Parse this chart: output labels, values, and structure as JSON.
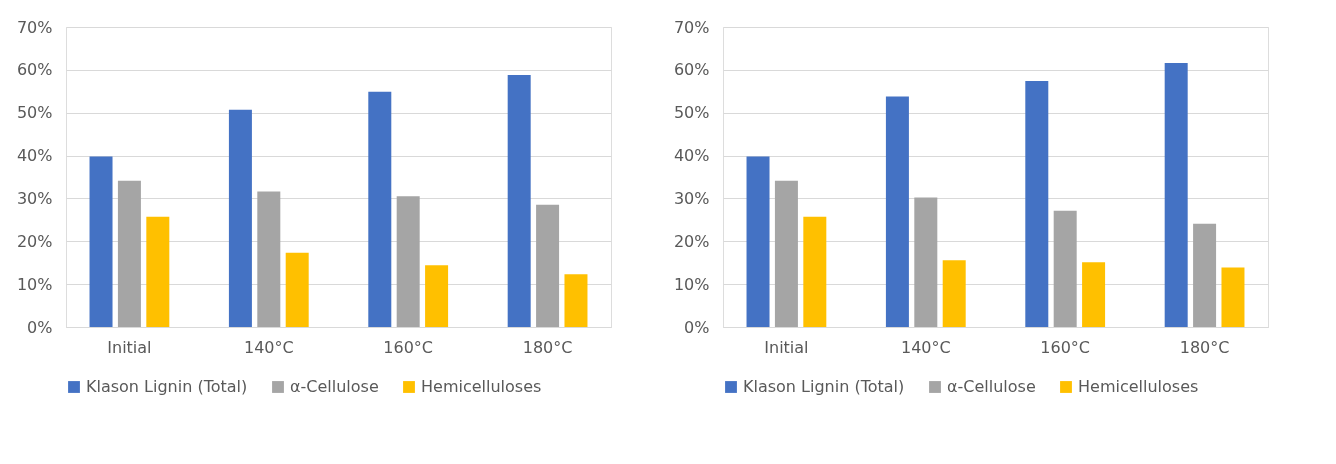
{
  "chart_data": [
    {
      "type": "bar",
      "categories": [
        "Initial",
        "140°C",
        "160°C",
        "180°C"
      ],
      "series": [
        {
          "name": "Klason Lignin (Total)",
          "color": "#4472c4",
          "values": [
            39.8,
            50.7,
            54.9,
            58.8
          ]
        },
        {
          "name": "α-Cellulose",
          "color": "#a5a5a5",
          "values": [
            34.1,
            31.6,
            30.5,
            28.5
          ]
        },
        {
          "name": "Hemicelluloses",
          "color": "#ffc000",
          "values": [
            25.7,
            17.3,
            14.4,
            12.3
          ]
        }
      ],
      "ylim": [
        0,
        70
      ],
      "yticks": [
        {
          "value": 0,
          "label": "0%"
        },
        {
          "value": 10,
          "label": "10%"
        },
        {
          "value": 20,
          "label": "20%"
        },
        {
          "value": 30,
          "label": "30%"
        },
        {
          "value": 40,
          "label": "40%"
        },
        {
          "value": 50,
          "label": "50%"
        },
        {
          "value": 60,
          "label": "60%"
        },
        {
          "value": 70,
          "label": "70%"
        }
      ],
      "grid": "y",
      "legend": "bottom"
    },
    {
      "type": "bar",
      "categories": [
        "Initial",
        "140°C",
        "160°C",
        "180°C"
      ],
      "series": [
        {
          "name": "Klason Lignin (Total)",
          "color": "#4472c4",
          "values": [
            39.8,
            53.8,
            57.4,
            61.6
          ]
        },
        {
          "name": "α-Cellulose",
          "color": "#a5a5a5",
          "values": [
            34.1,
            30.2,
            27.1,
            24.1
          ]
        },
        {
          "name": "Hemicelluloses",
          "color": "#ffc000",
          "values": [
            25.7,
            15.6,
            15.1,
            13.9
          ]
        }
      ],
      "ylim": [
        0,
        70
      ],
      "yticks": [
        {
          "value": 0,
          "label": "0%"
        },
        {
          "value": 10,
          "label": "10%"
        },
        {
          "value": 20,
          "label": "20%"
        },
        {
          "value": 30,
          "label": "30%"
        },
        {
          "value": 40,
          "label": "40%"
        },
        {
          "value": 50,
          "label": "50%"
        },
        {
          "value": 60,
          "label": "60%"
        },
        {
          "value": 70,
          "label": "70%"
        }
      ],
      "grid": "y",
      "legend": "bottom"
    }
  ]
}
